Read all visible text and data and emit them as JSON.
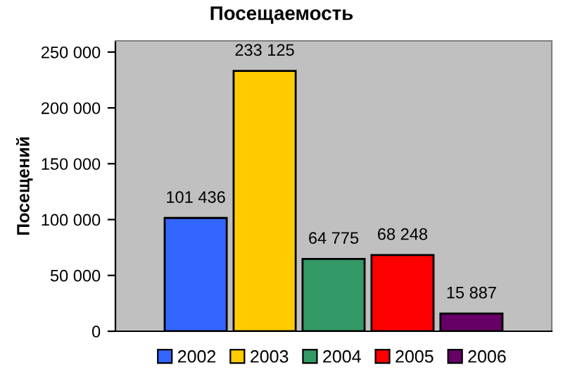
{
  "chart_data": {
    "type": "bar",
    "title": "Посещаемость",
    "ylabel": "Посещений",
    "categories": [
      null
    ],
    "series": [
      {
        "name": "2002",
        "color": "#3366ff",
        "values": [
          101436
        ],
        "value_labels": [
          "101 436"
        ]
      },
      {
        "name": "2003",
        "color": "#ffcc00",
        "values": [
          233125
        ],
        "value_labels": [
          "233 125"
        ]
      },
      {
        "name": "2004",
        "color": "#339966",
        "values": [
          64775
        ],
        "value_labels": [
          "64 775"
        ]
      },
      {
        "name": "2005",
        "color": "#ff0000",
        "values": [
          68248
        ],
        "value_labels": [
          "68 248"
        ]
      },
      {
        "name": "2006",
        "color": "#660066",
        "values": [
          15887
        ],
        "value_labels": [
          "15 887"
        ]
      }
    ],
    "ylim": [
      0,
      260000
    ],
    "yticks": [
      0,
      {
        "value": 50000,
        "label": "50 000"
      },
      {
        "value": 100000,
        "label": "100 000"
      },
      {
        "value": 150000,
        "label": "150 000"
      },
      {
        "value": 200000,
        "label": "200 000"
      },
      {
        "value": 250000,
        "label": "250 000"
      }
    ],
    "grid": false,
    "legend": "bottom"
  }
}
